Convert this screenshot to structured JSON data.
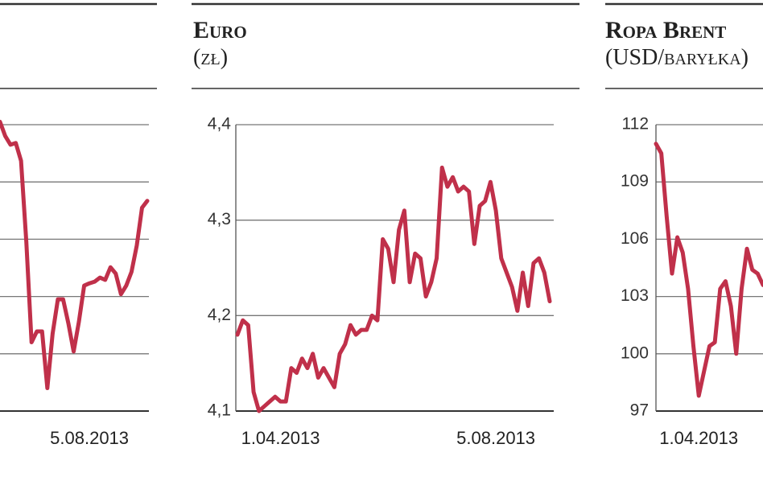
{
  "chart_data": [
    {
      "type": "line",
      "color": "#c0304a",
      "grid": true,
      "show_tick_labels": false,
      "ylim": [
        0,
        5
      ],
      "yticks": [
        0,
        1,
        2,
        3,
        4,
        5
      ],
      "categories": [
        null,
        null,
        null,
        null,
        null,
        null,
        null,
        null,
        null,
        null,
        null,
        null,
        null,
        null,
        null,
        null,
        null,
        "5.08.2013",
        null,
        null,
        null,
        null,
        null,
        null,
        null,
        null,
        null,
        null,
        null
      ],
      "values": [
        5.05,
        4.8,
        4.65,
        4.68,
        4.37,
        2.96,
        1.2,
        1.39,
        1.39,
        0.4,
        1.35,
        1.95,
        1.95,
        1.53,
        1.04,
        1.56,
        2.19,
        2.23,
        2.26,
        2.33,
        2.29,
        2.51,
        2.4,
        2.04,
        2.19,
        2.43,
        2.89,
        3.55,
        3.67
      ]
    },
    {
      "type": "line",
      "title": "Euro",
      "subtitle": "(zł)",
      "color": "#c0304a",
      "grid": true,
      "show_tick_labels": true,
      "ylim": [
        4.1,
        4.4
      ],
      "yticks": [
        {
          "value": 4.1,
          "label": "4,1"
        },
        {
          "value": 4.2,
          "label": "4,2"
        },
        {
          "value": 4.3,
          "label": "4,3"
        },
        {
          "value": 4.4,
          "label": "4,4"
        }
      ],
      "categories": [
        null,
        null,
        null,
        null,
        null,
        null,
        null,
        null,
        "1.04.2013",
        null,
        null,
        null,
        null,
        null,
        null,
        null,
        null,
        null,
        null,
        null,
        null,
        null,
        null,
        null,
        null,
        null,
        null,
        null,
        null,
        null,
        null,
        null,
        null,
        null,
        null,
        null,
        null,
        null,
        null,
        null,
        null,
        null,
        null,
        null,
        null,
        null,
        null,
        null,
        "5.08.2013",
        null,
        null,
        null,
        null,
        null,
        null,
        null,
        null,
        null,
        null
      ],
      "values": [
        4.18,
        4.195,
        4.19,
        4.12,
        4.1,
        4.105,
        4.11,
        4.115,
        4.11,
        4.11,
        4.145,
        4.14,
        4.155,
        4.145,
        4.16,
        4.135,
        4.145,
        4.135,
        4.125,
        4.16,
        4.17,
        4.19,
        4.18,
        4.185,
        4.185,
        4.2,
        4.195,
        4.28,
        4.27,
        4.235,
        4.29,
        4.31,
        4.235,
        4.265,
        4.26,
        4.22,
        4.235,
        4.26,
        4.355,
        4.335,
        4.345,
        4.33,
        4.335,
        4.33,
        4.275,
        4.315,
        4.32,
        4.34,
        4.31,
        4.26,
        4.245,
        4.23,
        4.205,
        4.245,
        4.21,
        4.255,
        4.26,
        4.245,
        4.215
      ]
    },
    {
      "type": "line",
      "title": "Ropa Brent",
      "subtitle": "(USD/baryłka)",
      "color": "#c0304a",
      "grid": true,
      "show_tick_labels": true,
      "ylim": [
        97,
        112
      ],
      "yticks": [
        97,
        100,
        103,
        106,
        109,
        112
      ],
      "categories": [
        null,
        null,
        null,
        null,
        null,
        null,
        null,
        null,
        "1.04.2013",
        null,
        null,
        null,
        null,
        null,
        null,
        null,
        null,
        null,
        null,
        null,
        null
      ],
      "values": [
        111.0,
        110.5,
        107.2,
        104.2,
        106.1,
        105.3,
        103.4,
        100.4,
        97.8,
        99.1,
        100.4,
        100.6,
        103.4,
        103.8,
        102.5,
        100.0,
        103.4,
        105.5,
        104.4,
        104.2,
        103.6
      ]
    }
  ]
}
